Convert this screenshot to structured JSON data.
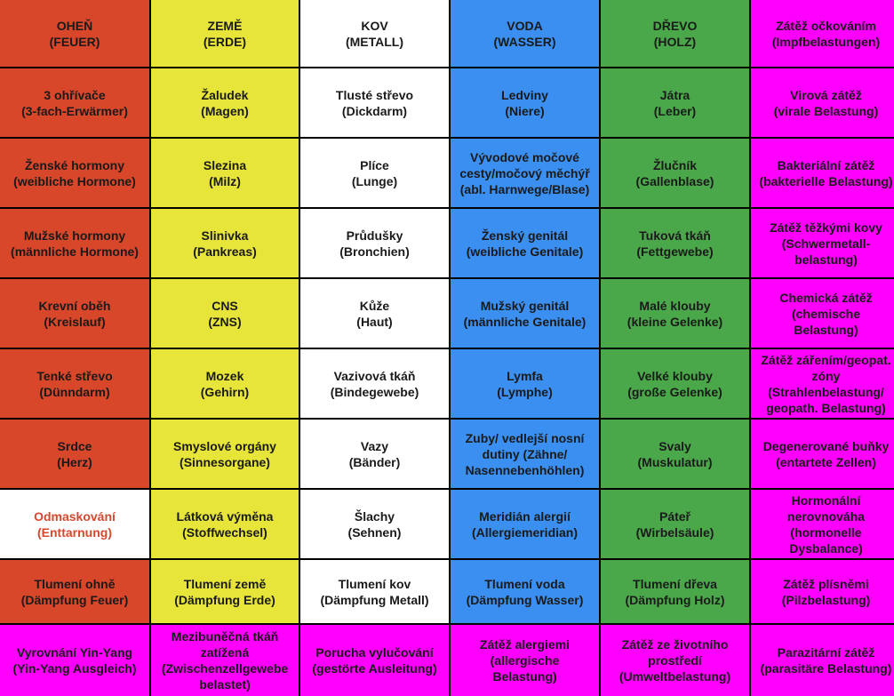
{
  "colors": {
    "fire": "#d9472b",
    "earth": "#e8e53a",
    "metal": "#ffffff",
    "water": "#3a8ff0",
    "wood": "#4aa84a",
    "burden": "#ff00ff"
  },
  "rows": [
    [
      {
        "t": "OHEŇ\n(FEUER)",
        "c": "fire"
      },
      {
        "t": "ZEMĚ\n(ERDE)",
        "c": "earth"
      },
      {
        "t": "KOV\n(METALL)",
        "c": "metal"
      },
      {
        "t": "VODA\n(WASSER)",
        "c": "water"
      },
      {
        "t": "DŘEVO\n(HOLZ)",
        "c": "wood"
      },
      {
        "t": "Zátěž očkováním\n(Impfbelastungen)",
        "c": "burden"
      }
    ],
    [
      {
        "t": "3 ohřívače\n(3-fach-Erwärmer)",
        "c": "fire"
      },
      {
        "t": "Žaludek\n(Magen)",
        "c": "earth"
      },
      {
        "t": "Tlusté střevo\n(Dickdarm)",
        "c": "metal"
      },
      {
        "t": "Ledviny\n(Niere)",
        "c": "water"
      },
      {
        "t": "Játra\n(Leber)",
        "c": "wood"
      },
      {
        "t": "Virová zátěž\n(virale Belastung)",
        "c": "burden"
      }
    ],
    [
      {
        "t": "Ženské hormony\n(weibliche Hormone)",
        "c": "fire"
      },
      {
        "t": "Slezina\n(Milz)",
        "c": "earth"
      },
      {
        "t": "Plíce\n(Lunge)",
        "c": "metal"
      },
      {
        "t": "Vývodové močové\ncesty/močový měchýř\n(abl. Harnwege/Blase)",
        "c": "water"
      },
      {
        "t": "Žlučník\n(Gallenblase)",
        "c": "wood"
      },
      {
        "t": "Bakteriální zátěž\n(bakterielle Belastung)",
        "c": "burden"
      }
    ],
    [
      {
        "t": "Mužské hormony\n(männliche Hormone)",
        "c": "fire"
      },
      {
        "t": "Slinivka\n(Pankreas)",
        "c": "earth"
      },
      {
        "t": "Průdušky\n(Bronchien)",
        "c": "metal"
      },
      {
        "t": "Ženský genitál\n(weibliche Genitale)",
        "c": "water"
      },
      {
        "t": "Tuková tkáň\n(Fettgewebe)",
        "c": "wood"
      },
      {
        "t": "Zátěž těžkými kovy\n(Schwermetall-\nbelastung)",
        "c": "burden"
      }
    ],
    [
      {
        "t": "Krevní oběh\n(Kreislauf)",
        "c": "fire"
      },
      {
        "t": "CNS\n(ZNS)",
        "c": "earth"
      },
      {
        "t": "Kůže\n(Haut)",
        "c": "metal"
      },
      {
        "t": "Mužský genitál\n(männliche Genitale)",
        "c": "water"
      },
      {
        "t": "Malé klouby\n(kleine Gelenke)",
        "c": "wood"
      },
      {
        "t": "Chemická zátěž\n(chemische\nBelastung)",
        "c": "burden"
      }
    ],
    [
      {
        "t": "Tenké střevo\n(Dünndarm)",
        "c": "fire"
      },
      {
        "t": "Mozek\n(Gehirn)",
        "c": "earth"
      },
      {
        "t": "Vazivová tkáň\n(Bindegewebe)",
        "c": "metal"
      },
      {
        "t": "Lymfa\n(Lymphe)",
        "c": "water"
      },
      {
        "t": "Velké klouby\n(große Gelenke)",
        "c": "wood"
      },
      {
        "t": "Zátěž zářením/geopat.\nzóny\n(Strahlenbelastung/\ngeopath. Belastung)",
        "c": "burden"
      }
    ],
    [
      {
        "t": "Srdce\n(Herz)",
        "c": "fire"
      },
      {
        "t": "Smyslové orgány\n(Sinnesorgane)",
        "c": "earth"
      },
      {
        "t": "Vazy\n(Bänder)",
        "c": "metal"
      },
      {
        "t": "Zuby/ vedlejší nosní\ndutiny (Zähne/\nNasennebenhöhlen)",
        "c": "water"
      },
      {
        "t": "Svaly\n(Muskulatur)",
        "c": "wood"
      },
      {
        "t": "Degenerované buňky\n(entartete Zellen)",
        "c": "burden"
      }
    ],
    [
      {
        "t": "Odmaskování\n(Enttarnung)",
        "c": "metal",
        "hl": true
      },
      {
        "t": "Látková výměna\n(Stoffwechsel)",
        "c": "earth"
      },
      {
        "t": "Šlachy\n(Sehnen)",
        "c": "metal"
      },
      {
        "t": "Meridián alergií\n(Allergiemeridian)",
        "c": "water"
      },
      {
        "t": "Páteř\n(Wirbelsäule)",
        "c": "wood"
      },
      {
        "t": "Hormonální\nnerovnováha\n(hormonelle\nDysbalance)",
        "c": "burden"
      }
    ],
    [
      {
        "t": "Tlumení ohně\n(Dämpfung Feuer)",
        "c": "fire"
      },
      {
        "t": "Tlumení země\n(Dämpfung Erde)",
        "c": "earth"
      },
      {
        "t": "Tlumení kov\n(Dämpfung Metall)",
        "c": "metal"
      },
      {
        "t": "Tlumení voda\n(Dämpfung Wasser)",
        "c": "water"
      },
      {
        "t": "Tlumení dřeva\n(Dämpfung Holz)",
        "c": "wood"
      },
      {
        "t": "Zátěž plísněmi\n(Pilzbelastung)",
        "c": "burden"
      }
    ],
    [
      {
        "t": "Vyrovnání Yin-Yang\n(Yin-Yang Ausgleich)",
        "c": "burden"
      },
      {
        "t": "Mezibuněčná tkáň\nzatížená\n(Zwischenzellgewebe\nbelastet)",
        "c": "burden"
      },
      {
        "t": "Porucha vylučování\n(gestörte Ausleitung)",
        "c": "burden"
      },
      {
        "t": "Zátěž alergiemi\n(allergische\nBelastung)",
        "c": "burden"
      },
      {
        "t": "Zátěž ze životního\nprostředí\n(Umweltbelastung)",
        "c": "burden"
      },
      {
        "t": "Parazitární zátěž\n(parasitäre Belastung)",
        "c": "burden"
      }
    ]
  ]
}
